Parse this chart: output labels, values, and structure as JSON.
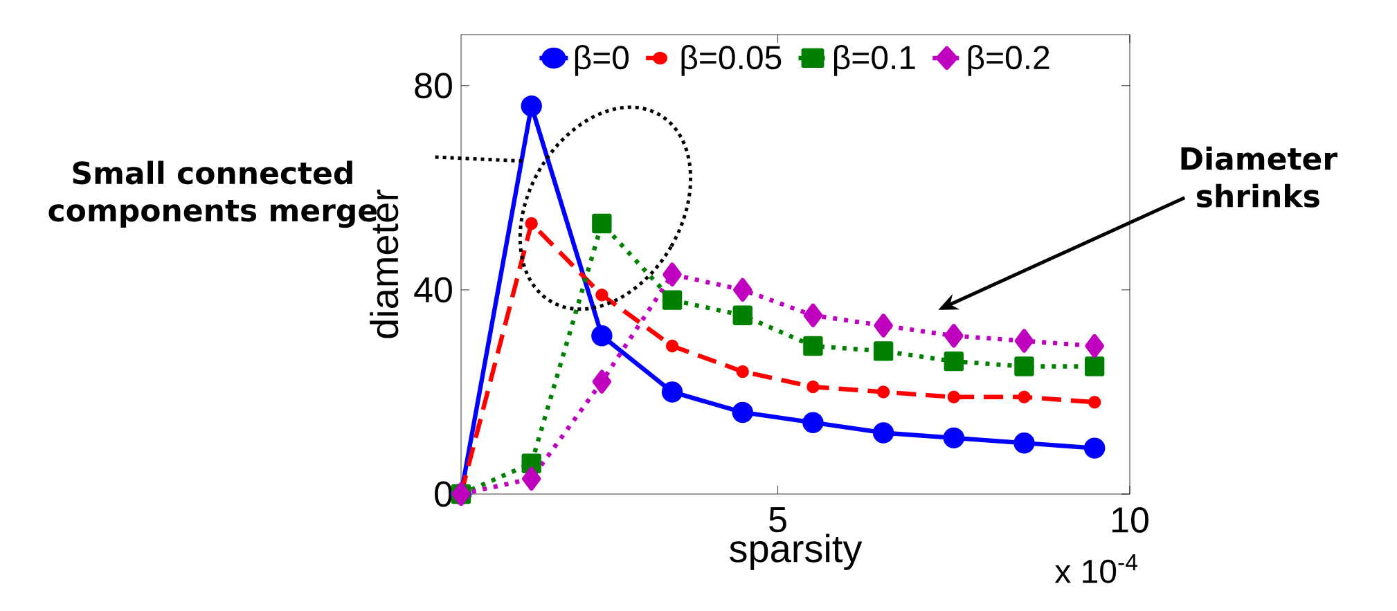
{
  "chart_data": {
    "type": "line",
    "xlabel": "sparsity",
    "ylabel": "diameter",
    "x": [
      0.5,
      1.5,
      2.5,
      3.5,
      4.5,
      5.5,
      6.5,
      7.5,
      8.5,
      9.5
    ],
    "xlim": [
      0.5,
      10
    ],
    "xticks": [
      5,
      10
    ],
    "ylim": [
      0,
      90
    ],
    "yticks": [
      0,
      40,
      80
    ],
    "legend": "top",
    "grid": false,
    "series": [
      {
        "name": "β=0",
        "color": "#0000ff",
        "marker": "circle",
        "line_style": "solid",
        "values": [
          0,
          76,
          31,
          20,
          16,
          14,
          12,
          11,
          10,
          9
        ]
      },
      {
        "name": "β=0.05",
        "color": "#ff0000",
        "marker": "circle",
        "line_style": "dashed",
        "values": [
          0,
          53,
          39,
          29,
          24,
          21,
          20,
          19,
          19,
          18
        ]
      },
      {
        "name": "β=0.1",
        "color": "#008000",
        "marker": "square",
        "line_style": "dotted",
        "values": [
          0,
          6,
          53,
          38,
          35,
          29,
          28,
          26,
          25,
          25
        ]
      },
      {
        "name": "β=0.2",
        "color": "#bf00bf",
        "marker": "diamond",
        "line_style": "dotted",
        "values": [
          0,
          3,
          22,
          43,
          40,
          35,
          33,
          31,
          30,
          29
        ]
      }
    ],
    "annotations": [
      "Small connected components merge",
      "Diameter shrinks",
      "x 10$^{-4}$"
    ]
  }
}
